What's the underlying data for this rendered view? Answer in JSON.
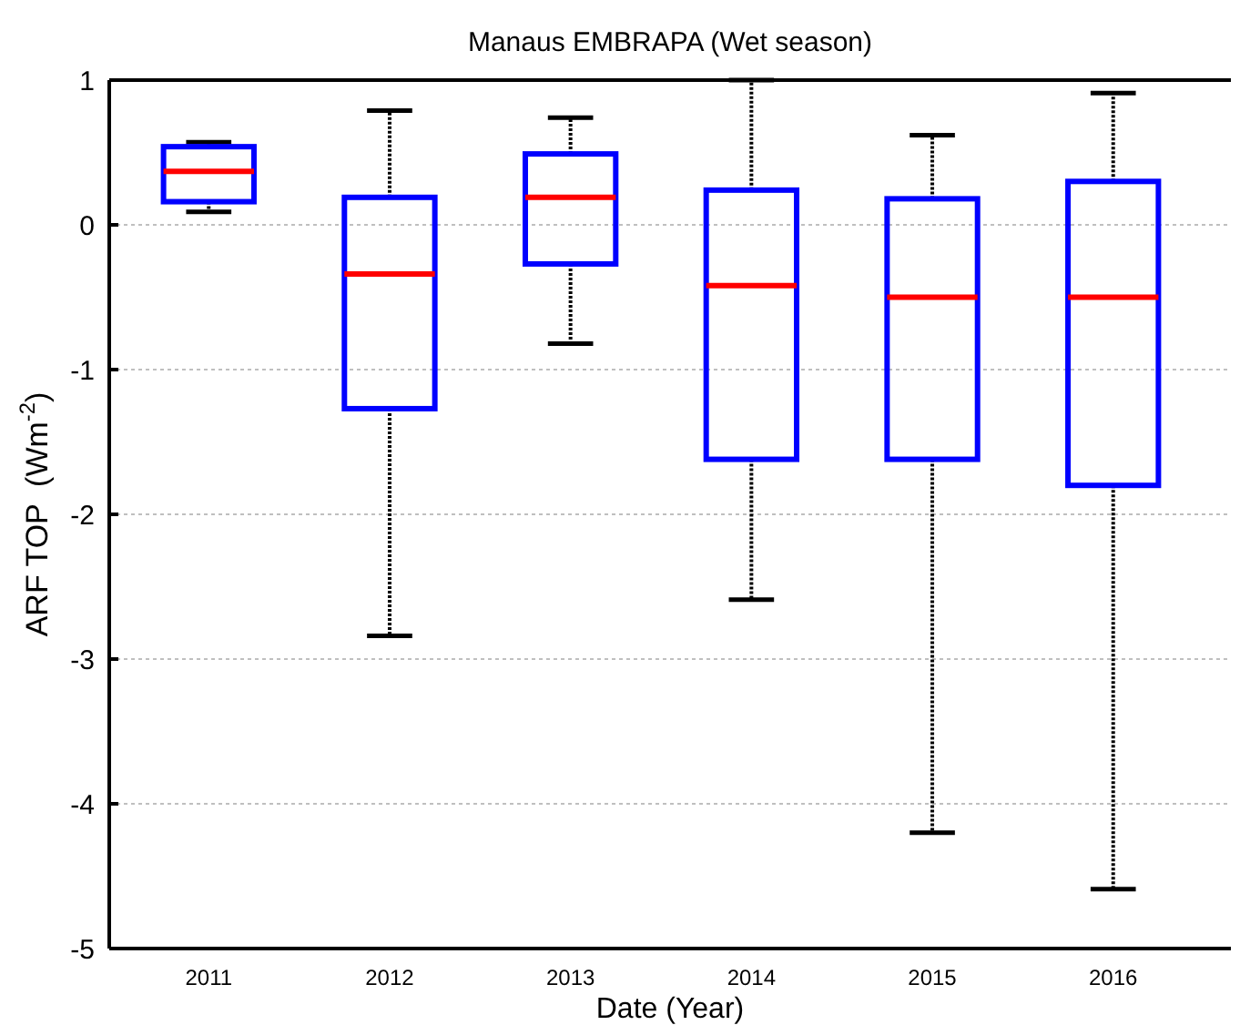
{
  "chart_data": {
    "type": "box",
    "title": "Manaus EMBRAPA (Wet season)",
    "xlabel": "Date (Year)",
    "ylabel": "ARF TOP  (Wm$^{-2}$)",
    "categories": [
      "2011",
      "2012",
      "2013",
      "2014",
      "2015",
      "2016"
    ],
    "series": [
      {
        "color": "#0000ff",
        "boxes": [
          {
            "low": 0.09,
            "q1": 0.16,
            "median": 0.37,
            "q3": 0.54,
            "high": 0.57
          },
          {
            "low": -2.84,
            "q1": -1.27,
            "median": -0.34,
            "q3": 0.19,
            "high": 0.79
          },
          {
            "low": -0.82,
            "q1": -0.27,
            "median": 0.19,
            "q3": 0.49,
            "high": 0.74
          },
          {
            "low": -2.59,
            "q1": -1.62,
            "median": -0.42,
            "q3": 0.24,
            "high": 1.0
          },
          {
            "low": -4.2,
            "q1": -1.62,
            "median": -0.5,
            "q3": 0.18,
            "high": 0.62
          },
          {
            "low": -4.59,
            "q1": -1.8,
            "median": -0.5,
            "q3": 0.3,
            "high": 0.91
          }
        ]
      }
    ],
    "ylim": [
      -5,
      1
    ],
    "yticks": [
      -5,
      -4,
      -3,
      -2,
      -1,
      0,
      1
    ],
    "grid": "y"
  }
}
